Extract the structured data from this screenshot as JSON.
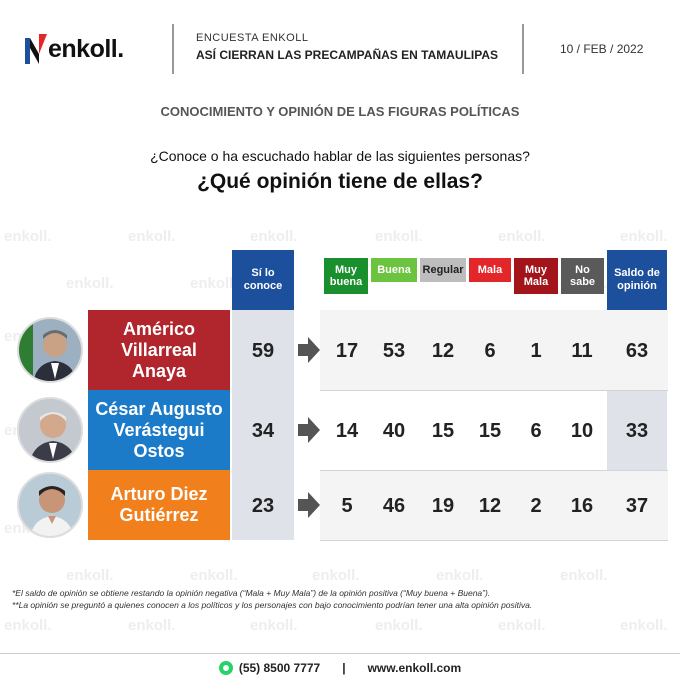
{
  "header": {
    "logo_text": "enkoll.",
    "survey_title": "ENCUESTA ENKOLL",
    "survey_subtitle": "ASÍ CIERRAN LAS PRECAMPAÑAS EN TAMAULIPAS",
    "date": "10 / FEB / 2022"
  },
  "section_title": "CONOCIMIENTO Y OPINIÓN DE LAS FIGURAS POLÍTICAS",
  "question_line1": "¿Conoce o ha escuchado hablar de las siguientes personas?",
  "question_line2": "¿Qué opinión tiene de ellas?",
  "watermark": "enkoll.",
  "columns": {
    "known": {
      "label_line1": "Sí lo",
      "label_line2": "conoce",
      "color": "#1c4f9c"
    },
    "muy_buena": {
      "label_line1": "Muy",
      "label_line2": "buena",
      "color": "#1a8f2d"
    },
    "buena": {
      "label": "Buena",
      "color": "#6cc33f"
    },
    "regular": {
      "label": "Regular",
      "color": "#b9b9b9"
    },
    "mala": {
      "label": "Mala",
      "color": "#e3262a"
    },
    "muy_mala": {
      "label_line1": "Muy",
      "label_line2": "Mala",
      "color": "#a3141a"
    },
    "no_sabe": {
      "label_line1": "No",
      "label_line2": "sabe",
      "color": "#5a5a5a"
    },
    "saldo": {
      "label_line1": "Saldo de",
      "label_line2": "opinión",
      "color": "#1c4f9c"
    }
  },
  "candidates": [
    {
      "name_line1": "Américo",
      "name_line2": "Villarreal",
      "name_line3": "Anaya",
      "color": "#b1252d",
      "known": "59",
      "muy_buena": "17",
      "buena": "53",
      "regular": "12",
      "mala": "6",
      "muy_mala": "1",
      "no_sabe": "11",
      "saldo": "63"
    },
    {
      "name_line1": "César Augusto",
      "name_line2": "Verástegui",
      "name_line3": "Ostos",
      "color": "#1b7bc8",
      "known": "34",
      "muy_buena": "14",
      "buena": "40",
      "regular": "15",
      "mala": "15",
      "muy_mala": "6",
      "no_sabe": "10",
      "saldo": "33"
    },
    {
      "name_line1": "Arturo Diez",
      "name_line2": "Gutiérrez",
      "color": "#f07f1c",
      "known": "23",
      "muy_buena": "5",
      "buena": "46",
      "regular": "19",
      "mala": "12",
      "muy_mala": "2",
      "no_sabe": "16",
      "saldo": "37"
    }
  ],
  "footnotes": {
    "note1": "*El saldo de opinión se obtiene restando la opinión negativa (“Mala + Muy Mala”) de la opinión positiva (“Muy buena + Buena”).",
    "note2": "**La opinión se preguntó a quienes conocen a los políticos y los personajes con bajo conocimiento podrían tener una alta opinión positiva."
  },
  "footer": {
    "phone": "(55) 8500 7777",
    "separator": "|",
    "website": "www.enkoll.com"
  }
}
